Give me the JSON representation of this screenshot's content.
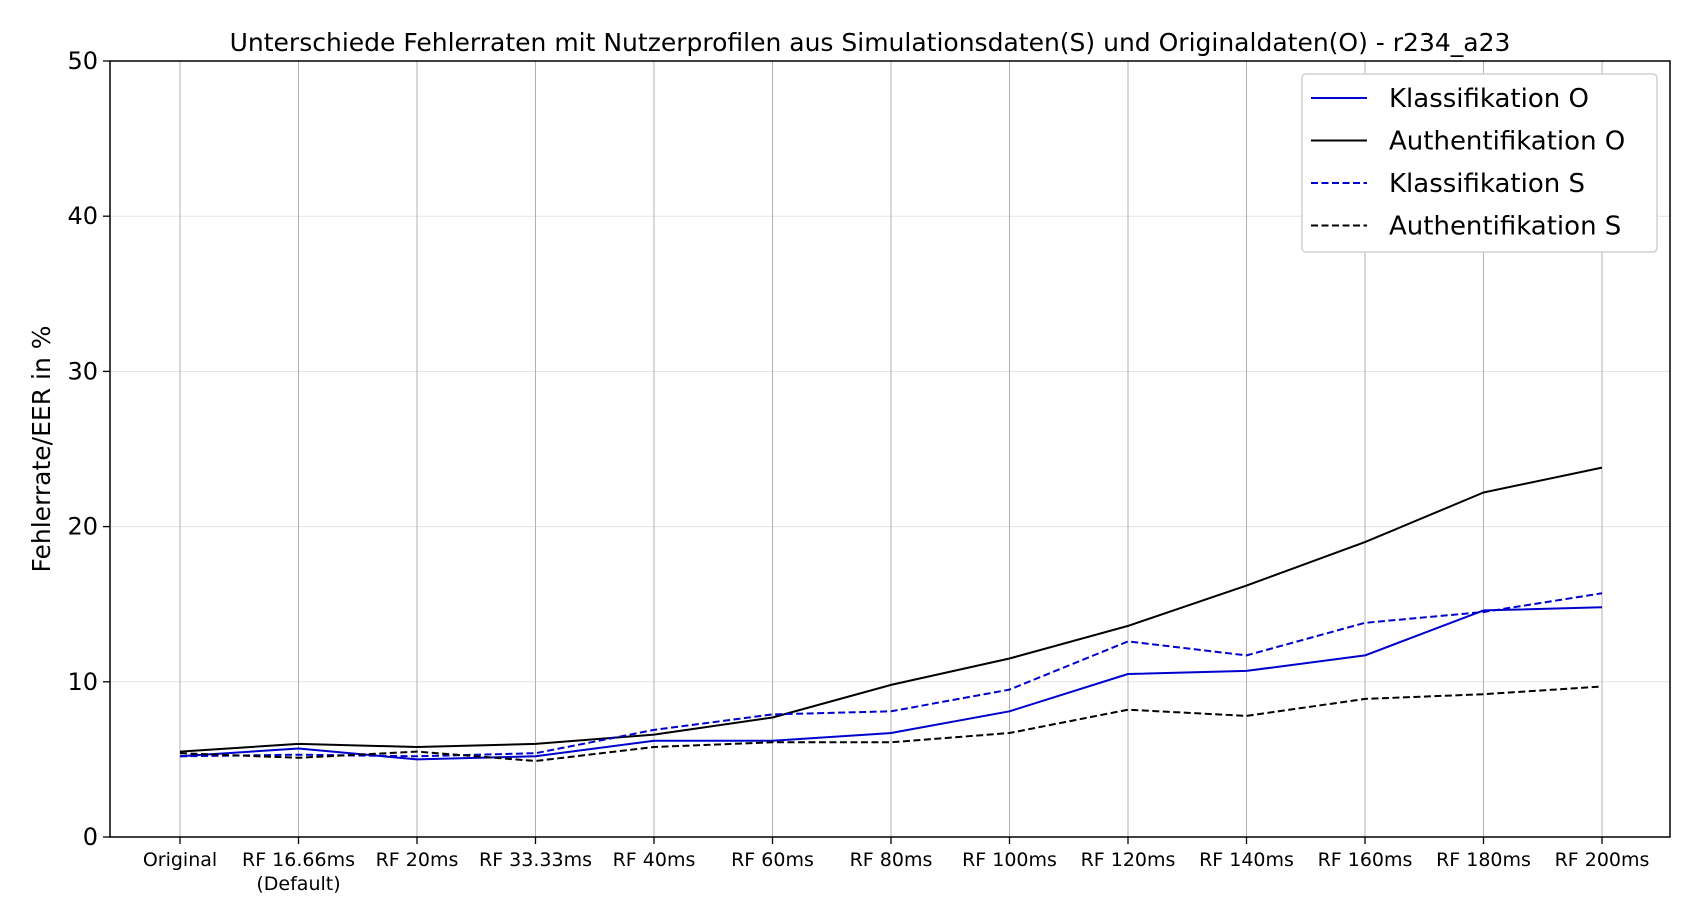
{
  "chart_data": {
    "type": "line",
    "title": "Unterschiede Fehlerraten mit Nutzerprofilen aus Simulationsdaten(S) und Originaldaten(O) - r234_a23",
    "xlabel": "",
    "ylabel": "Fehlerrate/EER in %",
    "ylim": [
      0,
      50
    ],
    "yticks": [
      0,
      10,
      20,
      30,
      40,
      50
    ],
    "grid": true,
    "legend_position": "top-right",
    "categories": [
      [
        "Original"
      ],
      [
        "RF 16.66ms",
        "(Default)"
      ],
      [
        "RF 20ms"
      ],
      [
        "RF 33.33ms"
      ],
      [
        "RF 40ms"
      ],
      [
        "RF 60ms"
      ],
      [
        "RF 80ms"
      ],
      [
        "RF 100ms"
      ],
      [
        "RF 120ms"
      ],
      [
        "RF 140ms"
      ],
      [
        "RF 160ms"
      ],
      [
        "RF 180ms"
      ],
      [
        "RF 200ms"
      ]
    ],
    "series": [
      {
        "name": "Klassifikation O",
        "color": "#0000cc",
        "dash": "solid",
        "values": [
          5.2,
          5.7,
          5.0,
          5.2,
          6.2,
          6.2,
          6.7,
          8.1,
          10.5,
          10.7,
          11.7,
          14.6,
          14.8
        ]
      },
      {
        "name": "Authentifikation O",
        "color": "#000000",
        "dash": "solid",
        "values": [
          5.5,
          6.0,
          5.8,
          6.0,
          6.6,
          7.7,
          9.8,
          11.5,
          13.6,
          16.2,
          19.0,
          22.2,
          23.8
        ]
      },
      {
        "name": "Klassifikation S",
        "color": "#0000cc",
        "dash": "dashed",
        "values": [
          5.2,
          5.3,
          5.2,
          5.4,
          6.9,
          7.9,
          8.1,
          9.5,
          12.6,
          11.7,
          13.8,
          14.5,
          15.7
        ]
      },
      {
        "name": "Authentifikation S",
        "color": "#000000",
        "dash": "dashed",
        "values": [
          5.4,
          5.1,
          5.5,
          4.9,
          5.8,
          6.1,
          6.1,
          6.7,
          8.2,
          7.8,
          8.9,
          9.2,
          9.7
        ]
      }
    ]
  }
}
